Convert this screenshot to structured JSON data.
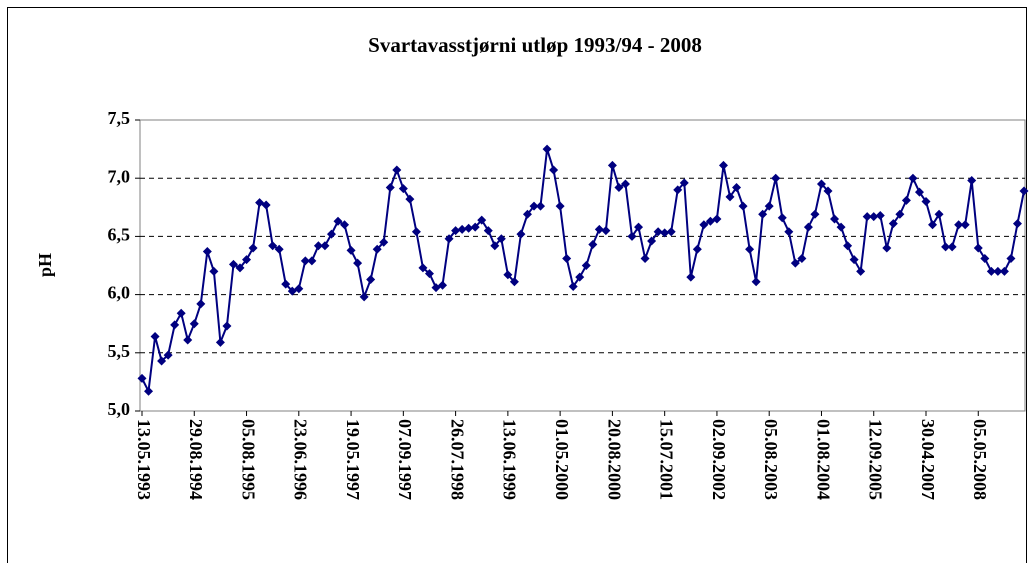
{
  "chart_data": {
    "type": "line",
    "title": "Svartavasstjørni utløp 1993/94 - 2008",
    "y_label": "pH",
    "color": "#000080",
    "grid": true,
    "ylim": [
      5.0,
      7.5
    ],
    "yticks": [
      {
        "value": 5.0,
        "label": "5,0"
      },
      {
        "value": 5.5,
        "label": "5,5"
      },
      {
        "value": 6.0,
        "label": "6,0"
      },
      {
        "value": 6.5,
        "label": "6,5"
      },
      {
        "value": 7.0,
        "label": "7,0"
      },
      {
        "value": 7.5,
        "label": "7,5"
      }
    ],
    "categories": [
      "13.05.1993",
      null,
      null,
      null,
      null,
      null,
      null,
      null,
      "29.08.1994",
      null,
      null,
      null,
      null,
      null,
      null,
      null,
      "05.08.1995",
      null,
      null,
      null,
      null,
      null,
      null,
      null,
      "23.06.1996",
      null,
      null,
      null,
      null,
      null,
      null,
      null,
      "19.05.1997",
      null,
      null,
      null,
      null,
      null,
      null,
      null,
      "07.09.1997",
      null,
      null,
      null,
      null,
      null,
      null,
      null,
      "26.07.1998",
      null,
      null,
      null,
      null,
      null,
      null,
      null,
      "13.06.1999",
      null,
      null,
      null,
      null,
      null,
      null,
      null,
      "01.05.2000",
      null,
      null,
      null,
      null,
      null,
      null,
      null,
      "20.08.2000",
      null,
      null,
      null,
      null,
      null,
      null,
      null,
      "15.07.2001",
      null,
      null,
      null,
      null,
      null,
      null,
      null,
      "02.09.2002",
      null,
      null,
      null,
      null,
      null,
      null,
      null,
      "05.08.2003",
      null,
      null,
      null,
      null,
      null,
      null,
      null,
      "01.08.2004",
      null,
      null,
      null,
      null,
      null,
      null,
      null,
      "12.09.2005",
      null,
      null,
      null,
      null,
      null,
      null,
      null,
      "30.04.2007",
      null,
      null,
      null,
      null,
      null,
      null,
      null,
      "05.05.2008",
      null,
      null,
      null,
      null,
      null,
      null,
      null
    ],
    "values": [
      5.28,
      5.17,
      5.64,
      5.43,
      5.48,
      5.74,
      5.84,
      5.61,
      5.75,
      5.92,
      6.37,
      6.2,
      5.59,
      5.73,
      6.26,
      6.23,
      6.3,
      6.4,
      6.79,
      6.77,
      6.42,
      6.39,
      6.09,
      6.03,
      6.05,
      6.29,
      6.29,
      6.42,
      6.42,
      6.52,
      6.63,
      6.6,
      6.38,
      6.27,
      5.98,
      6.13,
      6.39,
      6.45,
      6.92,
      7.07,
      6.91,
      6.82,
      6.54,
      6.23,
      6.18,
      6.06,
      6.08,
      6.48,
      6.55,
      6.56,
      6.57,
      6.58,
      6.64,
      6.55,
      6.42,
      6.48,
      6.17,
      6.11,
      6.52,
      6.69,
      6.76,
      6.76,
      7.25,
      7.07,
      6.76,
      6.31,
      6.07,
      6.15,
      6.25,
      6.43,
      6.56,
      6.55,
      7.11,
      6.92,
      6.95,
      6.5,
      6.58,
      6.31,
      6.46,
      6.54,
      6.53,
      6.54,
      6.9,
      6.96,
      6.15,
      6.39,
      6.6,
      6.63,
      6.65,
      7.11,
      6.84,
      6.92,
      6.76,
      6.39,
      6.11,
      6.69,
      6.76,
      7.0,
      6.66,
      6.54,
      6.27,
      6.31,
      6.58,
      6.69,
      6.95,
      6.89,
      6.65,
      6.58,
      6.42,
      6.3,
      6.2,
      6.67,
      6.67,
      6.68,
      6.4,
      6.61,
      6.69,
      6.81,
      7.0,
      6.88,
      6.8,
      6.6,
      6.69,
      6.41,
      6.41,
      6.6,
      6.6,
      6.98,
      6.4,
      6.31,
      6.2,
      6.2,
      6.2,
      6.31,
      6.61,
      6.89
    ]
  }
}
